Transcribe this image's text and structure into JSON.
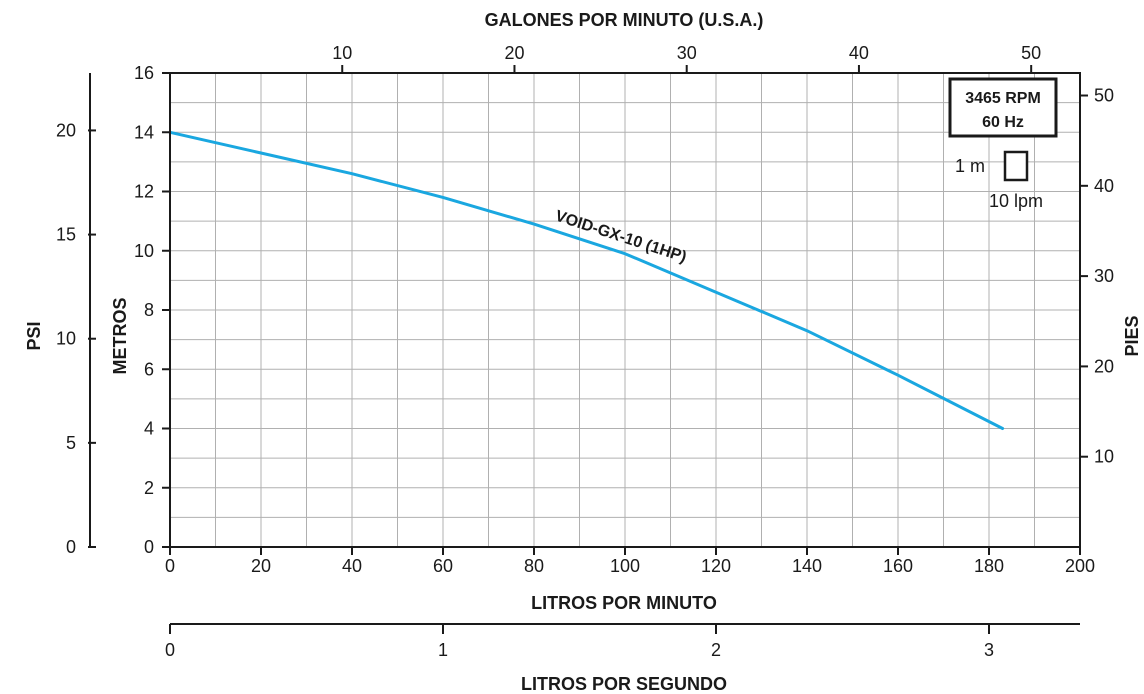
{
  "chart_data": {
    "type": "line",
    "x_axis": {
      "label": "LITROS POR MINUTO",
      "range": [
        0,
        200
      ],
      "ticks": [
        0,
        20,
        40,
        60,
        80,
        100,
        120,
        140,
        160,
        180,
        200
      ]
    },
    "y_axis": {
      "label": "METROS",
      "range": [
        0,
        16
      ],
      "ticks": [
        0,
        2,
        4,
        6,
        8,
        10,
        12,
        14,
        16
      ]
    },
    "top_axis": {
      "label": "GALONES POR MINUTO (U.S.A.)",
      "ticks": [
        10,
        20,
        30,
        40,
        50
      ]
    },
    "left_axis": {
      "label": "PSI",
      "ticks": [
        0,
        5,
        10,
        15,
        20
      ]
    },
    "right_axis": {
      "label": "PIES",
      "ticks": [
        10,
        20,
        30,
        40,
        50
      ]
    },
    "bottom_axis": {
      "label": "LITROS POR SEGUNDO",
      "ticks": [
        0,
        1,
        2,
        3
      ]
    },
    "grid": true,
    "series": [
      {
        "name": "VOID-GX-10 (1HP)",
        "color": "#1aa7e0",
        "x": [
          0,
          20,
          40,
          60,
          80,
          100,
          120,
          140,
          160,
          183
        ],
        "y": [
          14.0,
          13.3,
          12.6,
          11.8,
          10.9,
          9.9,
          8.6,
          7.3,
          5.8,
          4.0
        ]
      }
    ],
    "info_box": {
      "rpm": "3465 RPM",
      "hz": "60 Hz"
    },
    "scale_key": {
      "vertical": "1 m",
      "horizontal": "10 lpm"
    }
  }
}
